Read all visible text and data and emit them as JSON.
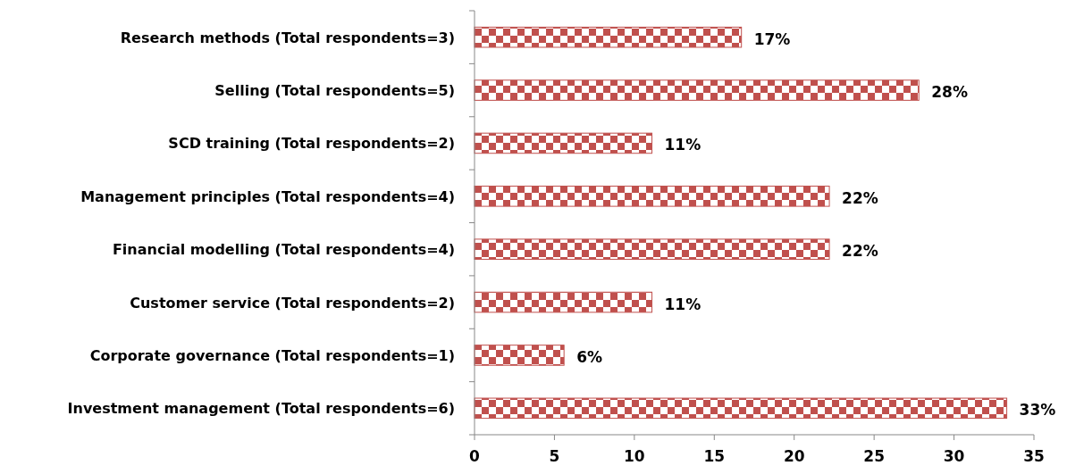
{
  "chart_data": {
    "type": "bar",
    "orientation": "horizontal",
    "categories": [
      "Research methods (Total respondents=3)",
      "Selling (Total respondents=5)",
      "SCD training (Total respondents=2)",
      "Management principles (Total respondents=4)",
      "Financial modelling (Total respondents=4)",
      "Customer service (Total respondents=2)",
      "Corporate governance (Total respondents=1)",
      "Investment management (Total respondents=6)"
    ],
    "values": [
      16.7,
      27.8,
      11.1,
      22.2,
      22.2,
      11.1,
      5.6,
      33.3
    ],
    "value_labels": [
      "17%",
      "28%",
      "11%",
      "22%",
      "22%",
      "11%",
      "6%",
      "33%"
    ],
    "color": "#c0504d",
    "xlim": [
      0,
      35
    ],
    "xticks": [
      0,
      5,
      10,
      15,
      20,
      25,
      30,
      35
    ],
    "grid": false
  }
}
